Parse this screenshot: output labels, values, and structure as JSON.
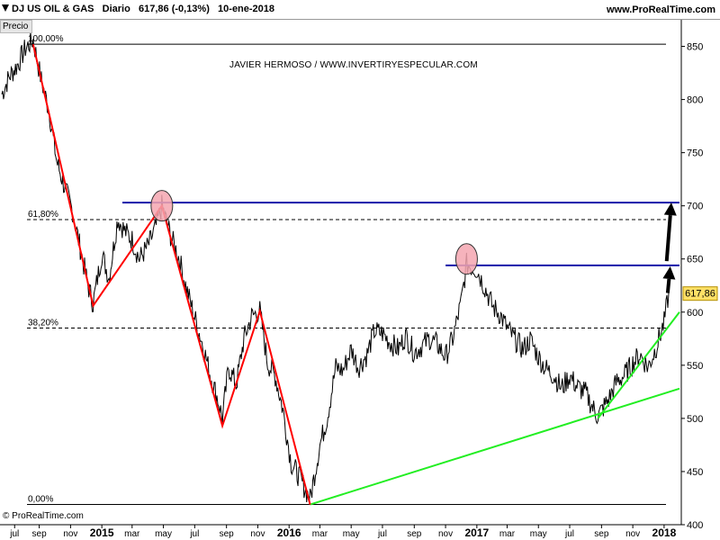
{
  "header": {
    "title": "DJ US OIL & GAS   Diario   617,86 (-0,13%)   10-ene-2018",
    "site": "www.ProRealTime.com"
  },
  "panel": {
    "tab": "Precio"
  },
  "annotation": {
    "author": "JAVIER HERMOSO / WWW.INVERTIRYESPECULAR.COM"
  },
  "footer": {
    "credit": "© ProRealTime.com"
  },
  "colors": {
    "price": "#000000",
    "zigzag": "#ff0000",
    "trendline": "#22ee22",
    "resistance": "#1a1aa8",
    "circle_fill": "#f4a6b0",
    "arrow": "#000000",
    "last_price_badge": "#ffe066"
  },
  "chart_data": {
    "type": "line",
    "x_axis": {
      "tick_labels": [
        "jul",
        "sep",
        "nov",
        "2015",
        "mar",
        "may",
        "jul",
        "sep",
        "nov",
        "2016",
        "mar",
        "may",
        "jul",
        "sep",
        "nov",
        "2017",
        "mar",
        "may",
        "jul",
        "sep",
        "nov",
        "2018"
      ]
    },
    "y_axis": {
      "ylim": [
        400,
        875
      ],
      "tick_labels": [
        "850",
        "800",
        "750",
        "700",
        "650",
        "600",
        "550",
        "500",
        "450",
        "400"
      ]
    },
    "last_price": "617,86",
    "fibonacci": [
      {
        "label": "100,00%",
        "value": 852
      },
      {
        "label": "61,80%",
        "value": 687
      },
      {
        "label": "38,20%",
        "value": 585
      },
      {
        "label": "0,00%",
        "value": 419
      }
    ],
    "resistance_lines": [
      {
        "value": 703,
        "from": "2015-02-10",
        "to": "2018-01-31"
      },
      {
        "value": 644,
        "from": "2016-11-01",
        "to": "2018-01-31"
      }
    ],
    "trend_lines": [
      {
        "from": [
          "2016-02-11",
          419
        ],
        "to": [
          "2018-01-31",
          528
        ]
      },
      {
        "from": [
          "2017-08-25",
          500
        ],
        "to": [
          "2018-01-31",
          600
        ]
      }
    ],
    "zigzag": [
      [
        "2014-08-20",
        852
      ],
      [
        "2014-12-15",
        606
      ],
      [
        "2015-04-28",
        700
      ],
      [
        "2015-08-24",
        493
      ],
      [
        "2015-11-05",
        601
      ],
      [
        "2016-02-11",
        419
      ]
    ],
    "circles": [
      {
        "x": "2015-04-28",
        "y": 700
      },
      {
        "x": "2016-12-12",
        "y": 650
      }
    ],
    "arrows": [
      {
        "from": [
          "2018-01-08",
          618
        ],
        "to": [
          "2018-01-13",
          643
        ]
      },
      {
        "from": [
          "2018-01-06",
          648
        ],
        "to": [
          "2018-01-15",
          703
        ]
      }
    ],
    "series": [
      {
        "x": [
          "2014-06-20",
          "2014-07-05",
          "2014-07-20",
          "2014-08-05",
          "2014-08-20",
          "2014-09-05",
          "2014-09-20",
          "2014-10-05",
          "2014-10-20",
          "2014-11-05",
          "2014-11-20",
          "2014-12-05",
          "2014-12-15",
          "2015-01-01",
          "2015-01-15",
          "2015-02-01",
          "2015-02-15",
          "2015-03-01",
          "2015-03-15",
          "2015-04-01",
          "2015-04-15",
          "2015-04-28",
          "2015-05-15",
          "2015-06-01",
          "2015-06-15",
          "2015-07-01",
          "2015-07-15",
          "2015-08-01",
          "2015-08-15",
          "2015-08-24",
          "2015-09-05",
          "2015-09-20",
          "2015-10-05",
          "2015-10-20",
          "2015-11-05",
          "2015-11-20",
          "2015-12-05",
          "2015-12-20",
          "2016-01-05",
          "2016-01-20",
          "2016-02-11",
          "2016-03-01",
          "2016-03-15",
          "2016-04-01",
          "2016-04-15",
          "2016-05-01",
          "2016-05-15",
          "2016-06-01",
          "2016-06-15",
          "2016-07-01",
          "2016-07-15",
          "2016-08-01",
          "2016-08-15",
          "2016-09-01",
          "2016-09-15",
          "2016-10-01",
          "2016-10-15",
          "2016-11-01",
          "2016-11-15",
          "2016-12-01",
          "2016-12-12",
          "2017-01-01",
          "2017-01-15",
          "2017-02-01",
          "2017-02-15",
          "2017-03-01",
          "2017-03-15",
          "2017-04-01",
          "2017-04-15",
          "2017-05-01",
          "2017-05-15",
          "2017-06-01",
          "2017-06-15",
          "2017-07-01",
          "2017-07-15",
          "2017-08-01",
          "2017-08-15",
          "2017-08-25",
          "2017-09-15",
          "2017-10-01",
          "2017-10-15",
          "2017-11-01",
          "2017-11-15",
          "2017-12-01",
          "2017-12-15",
          "2018-01-01",
          "2018-01-10"
        ],
        "y": [
          805,
          822,
          832,
          848,
          856,
          818,
          790,
          742,
          718,
          695,
          660,
          625,
          608,
          655,
          632,
          688,
          676,
          668,
          650,
          662,
          678,
          700,
          672,
          650,
          622,
          595,
          572,
          540,
          518,
          500,
          548,
          532,
          575,
          596,
          601,
          552,
          540,
          508,
          458,
          446,
          424,
          475,
          500,
          548,
          545,
          565,
          548,
          560,
          582,
          580,
          572,
          565,
          578,
          562,
          568,
          575,
          570,
          558,
          575,
          608,
          645,
          640,
          625,
          605,
          598,
          585,
          575,
          565,
          574,
          558,
          547,
          540,
          528,
          540,
          530,
          524,
          510,
          502,
          518,
          535,
          540,
          552,
          560,
          548,
          565,
          590,
          618
        ]
      }
    ]
  }
}
